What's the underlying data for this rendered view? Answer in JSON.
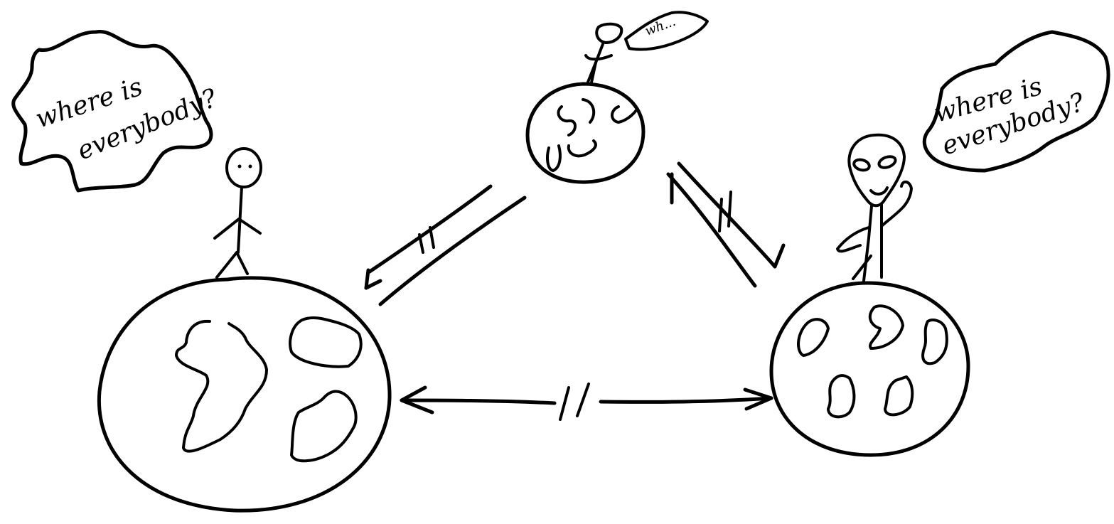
{
  "diagram": {
    "title": "",
    "speech": {
      "human": {
        "line1": "where is",
        "line2": "everybody?"
      },
      "alien": {
        "line1": "where is",
        "line2": "everybody?"
      },
      "small": {
        "text": "wh..."
      }
    }
  }
}
